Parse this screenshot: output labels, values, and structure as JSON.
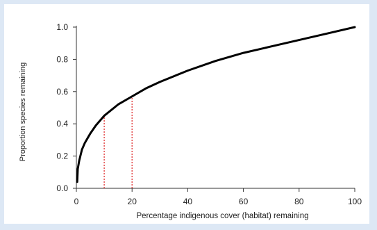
{
  "chart_data": {
    "type": "line",
    "title": "",
    "xlabel": "Percentage indigenous cover (habitat) remaining",
    "ylabel": "Proportion species remaining",
    "xlim": [
      0,
      100
    ],
    "ylim": [
      0,
      1.0
    ],
    "x_ticks": [
      "0",
      "20",
      "40",
      "60",
      "80",
      "100"
    ],
    "y_ticks": [
      "0.0",
      "0.2",
      "0.4",
      "0.6",
      "0.8",
      "1.0"
    ],
    "grid": false,
    "legend": "none",
    "series": [
      {
        "color": "#000000",
        "x": [
          0.3,
          0.5,
          1,
          2,
          3,
          5,
          7,
          10,
          15,
          20,
          25,
          30,
          40,
          50,
          60,
          70,
          80,
          90,
          100
        ],
        "y": [
          0.04,
          0.12,
          0.17,
          0.24,
          0.28,
          0.34,
          0.39,
          0.45,
          0.52,
          0.57,
          0.62,
          0.66,
          0.73,
          0.79,
          0.84,
          0.88,
          0.92,
          0.96,
          1.0
        ]
      }
    ],
    "reference_lines": [
      {
        "x": 10,
        "y": 0.45,
        "color": "#e03030",
        "style": "dotted"
      },
      {
        "x": 20,
        "y": 0.57,
        "color": "#e03030",
        "style": "dotted"
      }
    ]
  }
}
